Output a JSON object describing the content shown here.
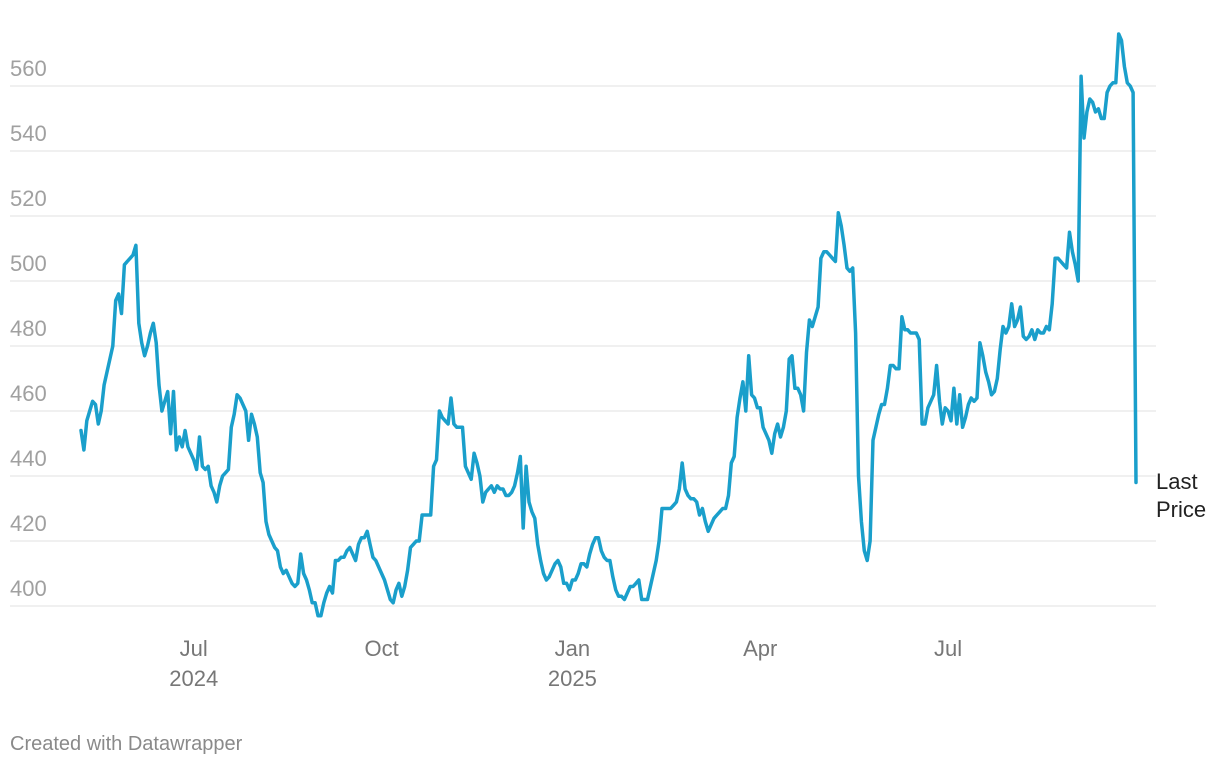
{
  "chart_data": {
    "type": "line",
    "title": "",
    "xlabel": "",
    "ylabel": "",
    "ylim": [
      393,
      578
    ],
    "y_ticks": [
      400,
      420,
      440,
      460,
      480,
      500,
      520,
      540,
      560
    ],
    "x_ticks": [
      {
        "index": 39,
        "line1": "Jul",
        "line2": "2024"
      },
      {
        "index": 104,
        "line1": "Oct",
        "line2": ""
      },
      {
        "index": 170,
        "line1": "Jan",
        "line2": "2025"
      },
      {
        "index": 235,
        "line1": "Apr",
        "line2": ""
      },
      {
        "index": 300,
        "line1": "Jul",
        "line2": ""
      }
    ],
    "end_label": [
      "Last",
      "Price"
    ],
    "grid": true,
    "color": "#1a9fcb",
    "series": [
      {
        "name": "Price",
        "values": [
          454,
          448,
          457,
          460,
          463,
          462,
          456,
          460,
          468,
          472,
          476,
          480,
          494,
          496,
          490,
          505,
          506,
          507,
          508,
          511,
          487,
          481,
          477,
          480,
          484,
          487,
          481,
          468,
          460,
          463,
          466,
          453,
          466,
          448,
          452,
          449,
          454,
          449,
          447,
          445,
          442,
          452,
          443,
          442,
          443,
          437,
          435,
          432,
          437,
          440,
          441,
          442,
          455,
          459,
          465,
          464,
          462,
          460,
          451,
          459,
          456,
          452,
          441,
          438,
          426,
          422,
          420,
          418,
          417,
          412,
          410,
          411,
          409,
          407,
          406,
          407,
          416,
          410,
          408,
          405,
          401,
          401,
          397,
          397,
          401,
          404,
          406,
          404,
          414,
          414,
          415,
          415,
          417,
          418,
          416,
          414,
          419,
          421,
          421,
          423,
          419,
          415,
          414,
          412,
          410,
          408,
          405,
          402,
          401,
          405,
          407,
          403,
          406,
          411,
          418,
          419,
          420,
          420,
          428,
          428,
          428,
          428,
          443,
          445,
          460,
          458,
          457,
          456,
          464,
          456,
          455,
          455,
          455,
          443,
          441,
          439,
          447,
          444,
          440,
          432,
          435,
          436,
          437,
          435,
          437,
          436,
          436,
          434,
          434,
          435,
          437,
          441,
          446,
          424,
          443,
          432,
          429,
          427,
          419,
          414,
          410,
          408,
          409,
          411,
          413,
          414,
          412,
          407,
          407,
          405,
          408,
          408,
          410,
          413,
          413,
          412,
          416,
          419,
          421,
          421,
          417,
          415,
          414,
          414,
          409,
          405,
          403,
          403,
          402,
          404,
          406,
          406,
          407,
          408,
          402,
          402,
          402,
          406,
          410,
          414,
          420,
          430,
          430,
          430,
          430,
          431,
          432,
          436,
          444,
          436,
          434,
          433,
          433,
          432,
          428,
          430,
          426,
          423,
          425,
          427,
          428,
          429,
          430,
          430,
          434,
          444,
          446,
          458,
          464,
          469,
          460,
          477,
          465,
          464,
          461,
          461,
          455,
          453,
          451,
          447,
          453,
          456,
          452,
          455,
          460,
          476,
          477,
          467,
          467,
          465,
          460,
          478,
          488,
          486,
          489,
          492,
          507,
          509,
          509,
          508,
          507,
          506,
          521,
          517,
          511,
          504,
          503,
          504,
          484,
          440,
          426,
          417,
          414,
          420,
          451,
          455,
          459,
          462,
          462,
          467,
          474,
          474,
          473,
          473,
          489,
          485,
          485,
          484,
          484,
          484,
          482,
          456,
          456,
          461,
          463,
          465,
          474,
          463,
          456,
          461,
          460,
          457,
          467,
          456,
          465,
          455,
          458,
          462,
          464,
          463,
          464,
          481,
          477,
          472,
          469,
          465,
          466,
          470,
          479,
          486,
          484,
          486,
          493,
          486,
          488,
          492,
          483,
          482,
          483,
          485,
          482,
          485,
          484,
          484,
          486,
          485,
          493,
          507,
          507,
          506,
          505,
          504,
          515,
          509,
          505,
          500,
          563,
          544,
          552,
          556,
          555,
          552,
          553,
          550,
          550,
          558,
          560,
          561,
          561,
          576,
          574,
          566,
          561,
          560,
          558,
          438
        ]
      }
    ]
  }
}
